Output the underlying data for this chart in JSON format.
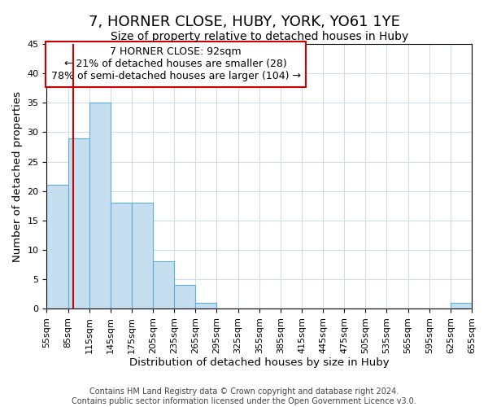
{
  "title": "7, HORNER CLOSE, HUBY, YORK, YO61 1YE",
  "subtitle": "Size of property relative to detached houses in Huby",
  "xlabel": "Distribution of detached houses by size in Huby",
  "ylabel": "Number of detached properties",
  "footnote1": "Contains HM Land Registry data © Crown copyright and database right 2024.",
  "footnote2": "Contains public sector information licensed under the Open Government Licence v3.0.",
  "bin_edges": [
    55,
    85,
    115,
    145,
    175,
    205,
    235,
    265,
    295,
    325,
    355,
    385,
    415,
    445,
    475,
    505,
    535,
    565,
    595,
    625,
    655
  ],
  "bin_labels": [
    "55sqm",
    "85sqm",
    "115sqm",
    "145sqm",
    "175sqm",
    "205sqm",
    "235sqm",
    "265sqm",
    "295sqm",
    "325sqm",
    "355sqm",
    "385sqm",
    "415sqm",
    "445sqm",
    "475sqm",
    "505sqm",
    "535sqm",
    "565sqm",
    "595sqm",
    "625sqm",
    "655sqm"
  ],
  "counts": [
    21,
    29,
    35,
    18,
    18,
    8,
    4,
    1,
    0,
    0,
    0,
    0,
    0,
    0,
    0,
    0,
    0,
    0,
    0,
    1
  ],
  "bar_facecolor": "#c5dff0",
  "bar_edgecolor": "#5bafd6",
  "red_line_x": 92,
  "red_line_color": "#cc0000",
  "ylim": [
    0,
    45
  ],
  "yticks": [
    0,
    5,
    10,
    15,
    20,
    25,
    30,
    35,
    40,
    45
  ],
  "annotation_text": "7 HORNER CLOSE: 92sqm\n← 21% of detached houses are smaller (28)\n78% of semi-detached houses are larger (104) →",
  "annotation_box_edgecolor": "#cc0000",
  "annotation_box_facecolor": "#ffffff",
  "title_fontsize": 13,
  "subtitle_fontsize": 10,
  "axis_label_fontsize": 9.5,
  "tick_fontsize": 8,
  "annotation_fontsize": 9,
  "footnote_fontsize": 7,
  "grid_color": "#d0dde8",
  "background_color": "#ffffff"
}
